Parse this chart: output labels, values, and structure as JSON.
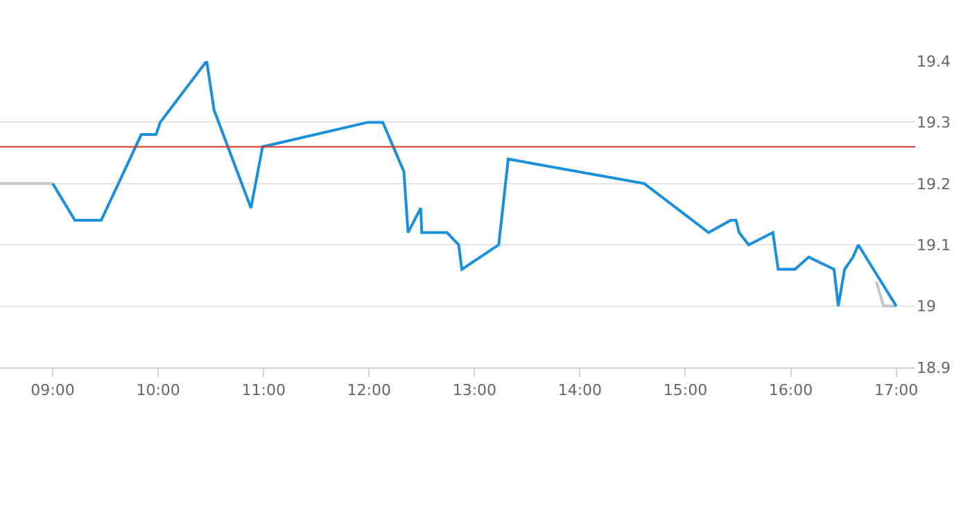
{
  "chart_data": {
    "type": "line",
    "series": [
      {
        "color": "#bfc5c9",
        "x": [
          8.5,
          9.0
        ],
        "values": [
          19.2,
          19.2
        ]
      },
      {
        "color": "#bfc5c9",
        "x": [
          16.81,
          16.88,
          17.0
        ],
        "values": [
          19.04,
          19.0,
          19.0
        ]
      },
      {
        "color": "#1a8fdc",
        "x": [
          9.0,
          9.21,
          9.46,
          9.84,
          9.98,
          10.02,
          10.46,
          10.53,
          10.88,
          10.99,
          11.99,
          12.13,
          12.33,
          12.37,
          12.49,
          12.5,
          12.74,
          12.85,
          12.88,
          13.23,
          13.32,
          14.61,
          15.22,
          15.43,
          15.48,
          15.51,
          15.6,
          15.83,
          15.88,
          16.04,
          16.17,
          16.41,
          16.45,
          16.51,
          16.59,
          16.64,
          17.0
        ],
        "values": [
          19.2,
          19.14,
          19.14,
          19.28,
          19.28,
          19.3,
          19.4,
          19.32,
          19.16,
          19.26,
          19.3,
          19.3,
          19.22,
          19.12,
          19.16,
          19.12,
          19.12,
          19.1,
          19.06,
          19.1,
          19.24,
          19.2,
          19.12,
          19.14,
          19.14,
          19.12,
          19.1,
          19.12,
          19.06,
          19.06,
          19.08,
          19.06,
          19.0,
          19.06,
          19.08,
          19.1,
          19.0
        ]
      }
    ],
    "xlim": [
      8.5,
      17.18
    ],
    "xticks": [
      {
        "value": 9,
        "label": "09:00"
      },
      {
        "value": 10,
        "label": "10:00"
      },
      {
        "value": 11,
        "label": "11:00"
      },
      {
        "value": 12,
        "label": "12:00"
      },
      {
        "value": 13,
        "label": "13:00"
      },
      {
        "value": 14,
        "label": "14:00"
      },
      {
        "value": 15,
        "label": "15:00"
      },
      {
        "value": 16,
        "label": "16:00"
      },
      {
        "value": 17,
        "label": "17:00"
      }
    ],
    "ylim": [
      18.9,
      19.4
    ],
    "yticks": [
      18.9,
      19,
      19.1,
      19.2,
      19.3,
      19.4
    ],
    "ref_lines": [
      {
        "axis": "y",
        "value": 19.26,
        "color": "#d9372b"
      }
    ],
    "grid": "y",
    "legend": false,
    "marker": "none",
    "line_style": "solid"
  }
}
